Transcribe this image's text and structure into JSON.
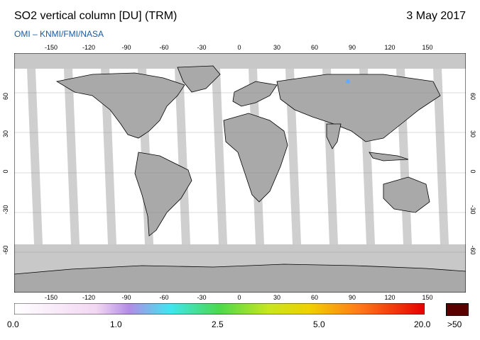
{
  "header": {
    "title": "SO2 vertical column [DU] (TRM)",
    "date": "3 May 2017",
    "credit": "OMI  –  KNMI/FMI/NASA"
  },
  "map": {
    "lon_ticks": [
      "-150",
      "-120",
      "-90",
      "-60",
      "-30",
      "0",
      "30",
      "60",
      "90",
      "120",
      "150"
    ],
    "lat_ticks": [
      "60",
      "30",
      "0",
      "-30",
      "-60"
    ],
    "colors": {
      "land_mask": "#a9a9a9",
      "swath": "#ffffff",
      "no_data": "#c8c8c8",
      "coast": "#000000"
    }
  },
  "colorbar": {
    "labels": [
      "0.0",
      "1.0",
      "2.5",
      "5.0",
      "20.0"
    ],
    "overflow_label": ">50",
    "overflow_color": "#5a0000"
  }
}
